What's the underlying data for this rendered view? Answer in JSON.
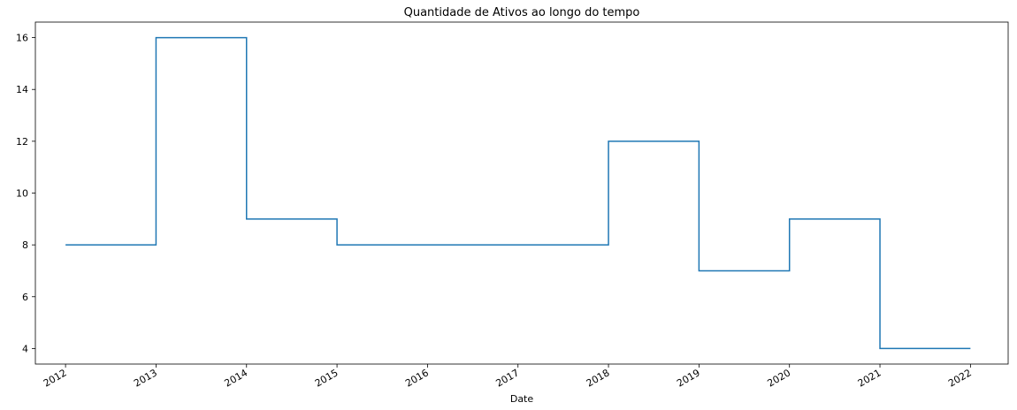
{
  "chart_data": {
    "type": "line",
    "drawstyle": "steps-post",
    "title": "Quantidade de Ativos ao longo do tempo",
    "xlabel": "Date",
    "ylabel": "",
    "x_tick_labels": [
      "2012",
      "2013",
      "2014",
      "2015",
      "2016",
      "2017",
      "2018",
      "2019",
      "2020",
      "2021",
      "2022"
    ],
    "y_tick_labels": [
      "4",
      "6",
      "8",
      "10",
      "12",
      "14",
      "16"
    ],
    "xlim": [
      "2011-09",
      "2022-06"
    ],
    "ylim": [
      3.4,
      16.6
    ],
    "grid": false,
    "legend": "none",
    "series": [
      {
        "color": "#1f77b4",
        "x": [
          "2012",
          "2013",
          "2014",
          "2015",
          "2016",
          "2017",
          "2018",
          "2019",
          "2020",
          "2021",
          "2022"
        ],
        "y": [
          8,
          16,
          9,
          8,
          8,
          8,
          12,
          7,
          9,
          4,
          4
        ]
      }
    ]
  }
}
